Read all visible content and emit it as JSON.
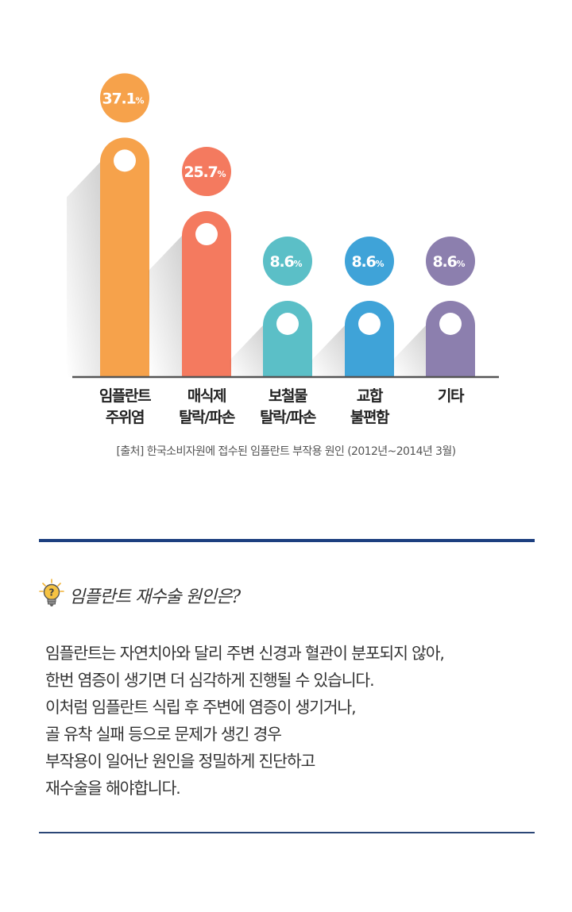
{
  "chart_data": {
    "type": "bar",
    "categories": [
      [
        "임플란트",
        "주위염"
      ],
      [
        "매식제",
        "탈락/파손"
      ],
      [
        "보철물",
        "탈락/파손"
      ],
      [
        "교합",
        "불편함"
      ],
      [
        "기타"
      ]
    ],
    "values": [
      37.1,
      25.7,
      8.6,
      8.6,
      8.6
    ],
    "unit": "%",
    "colors": [
      "#f6a24b",
      "#f47a5f",
      "#5bbfc7",
      "#3fa3d8",
      "#8c7fae"
    ],
    "source": "[출처] 한국소비자원에 접수된 임플란트 부작용 원인 (2012년~2014년 3월)"
  },
  "section": {
    "icon": "lightbulb-icon",
    "question": "임플란트 재수술 원인은?",
    "paragraph1": [
      "임플란트는 자연치아와 달리 주변 신경과 혈관이 분포되지 않아,",
      "한번 염증이 생기면 더 심각하게 진행될 수 있습니다."
    ],
    "paragraph2": [
      "이처럼 임플란트 식립 후 주변에 염증이 생기거나,",
      "골 유착 실패 등으로 문제가 생긴 경우",
      "부작용이 일어난 원인을 정밀하게 진단하고",
      "재수술을 해야합니다."
    ]
  }
}
